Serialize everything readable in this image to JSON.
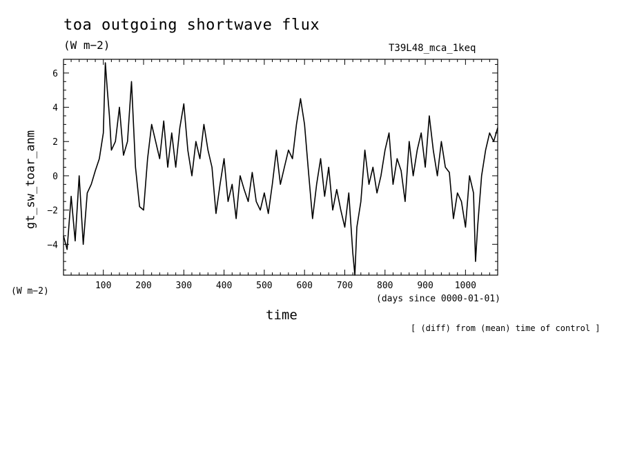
{
  "header": {
    "title": "toa outgoing shortwave flux",
    "units_top": "(W m−2)",
    "run_name": "T39L48_mca_1keq"
  },
  "axes_text": {
    "units_left": "(W m−2)",
    "x_sub": "(days since 0000-01-01)",
    "x_label": "time",
    "y_label": "gt_sw_toar_anm"
  },
  "footnote": "[ (diff) from (mean) time of control ]",
  "chart_data": {
    "type": "line",
    "title": "toa outgoing shortwave flux",
    "xlabel": "time",
    "ylabel": "gt_sw_toar_anm",
    "xlim": [
      1,
      1080
    ],
    "ylim": [
      -5.8,
      6.8
    ],
    "x_ticks": [
      100,
      200,
      300,
      400,
      500,
      600,
      700,
      800,
      900,
      1000
    ],
    "y_ticks": [
      -4,
      -2,
      0,
      2,
      4,
      6
    ],
    "grid": false,
    "series": [
      {
        "x": [
          1,
          10,
          20,
          30,
          40,
          50,
          60,
          70,
          80,
          90,
          100,
          105,
          110,
          115,
          120,
          130,
          140,
          150,
          160,
          170,
          180,
          190,
          200,
          210,
          220,
          230,
          240,
          250,
          260,
          270,
          280,
          290,
          300,
          310,
          320,
          330,
          340,
          350,
          360,
          370,
          380,
          390,
          400,
          410,
          420,
          430,
          440,
          450,
          460,
          470,
          480,
          490,
          500,
          510,
          520,
          530,
          540,
          550,
          560,
          570,
          580,
          590,
          600,
          610,
          620,
          630,
          640,
          650,
          660,
          670,
          680,
          690,
          700,
          710,
          720,
          725,
          730,
          740,
          750,
          760,
          770,
          780,
          790,
          800,
          810,
          820,
          830,
          840,
          850,
          860,
          870,
          880,
          890,
          900,
          910,
          920,
          930,
          940,
          950,
          960,
          970,
          980,
          990,
          1000,
          1010,
          1020,
          1025,
          1030,
          1040,
          1050,
          1060,
          1070,
          1080
        ],
        "values": [
          -3.5,
          -4.3,
          -1.2,
          -3.8,
          0.0,
          -4.0,
          -1.0,
          -0.5,
          0.3,
          1.0,
          2.5,
          6.6,
          5.0,
          3.5,
          1.5,
          2.0,
          4.0,
          1.2,
          2.0,
          5.5,
          0.5,
          -1.8,
          -2.0,
          1.0,
          3.0,
          2.0,
          1.0,
          3.2,
          0.5,
          2.5,
          0.5,
          2.8,
          4.2,
          1.5,
          0.0,
          2.0,
          1.0,
          3.0,
          1.5,
          0.5,
          -2.2,
          -0.5,
          1.0,
          -1.5,
          -0.5,
          -2.5,
          0.0,
          -0.8,
          -1.5,
          0.2,
          -1.5,
          -2.0,
          -1.0,
          -2.2,
          -0.5,
          1.5,
          -0.5,
          0.5,
          1.5,
          1.0,
          3.0,
          4.5,
          3.0,
          0.2,
          -2.5,
          -0.5,
          1.0,
          -1.2,
          0.5,
          -2.0,
          -0.8,
          -2.0,
          -3.0,
          -1.0,
          -4.5,
          -5.8,
          -3.0,
          -1.5,
          1.5,
          -0.5,
          0.5,
          -1.0,
          0.0,
          1.5,
          2.5,
          -0.5,
          1.0,
          0.3,
          -1.5,
          2.0,
          0.0,
          1.5,
          2.5,
          0.5,
          3.5,
          1.5,
          0.0,
          2.0,
          0.5,
          0.2,
          -2.5,
          -1.0,
          -1.5,
          -3.0,
          0.0,
          -1.0,
          -5.0,
          -3.0,
          0.0,
          1.5,
          2.5,
          2.0,
          2.8
        ]
      }
    ]
  }
}
